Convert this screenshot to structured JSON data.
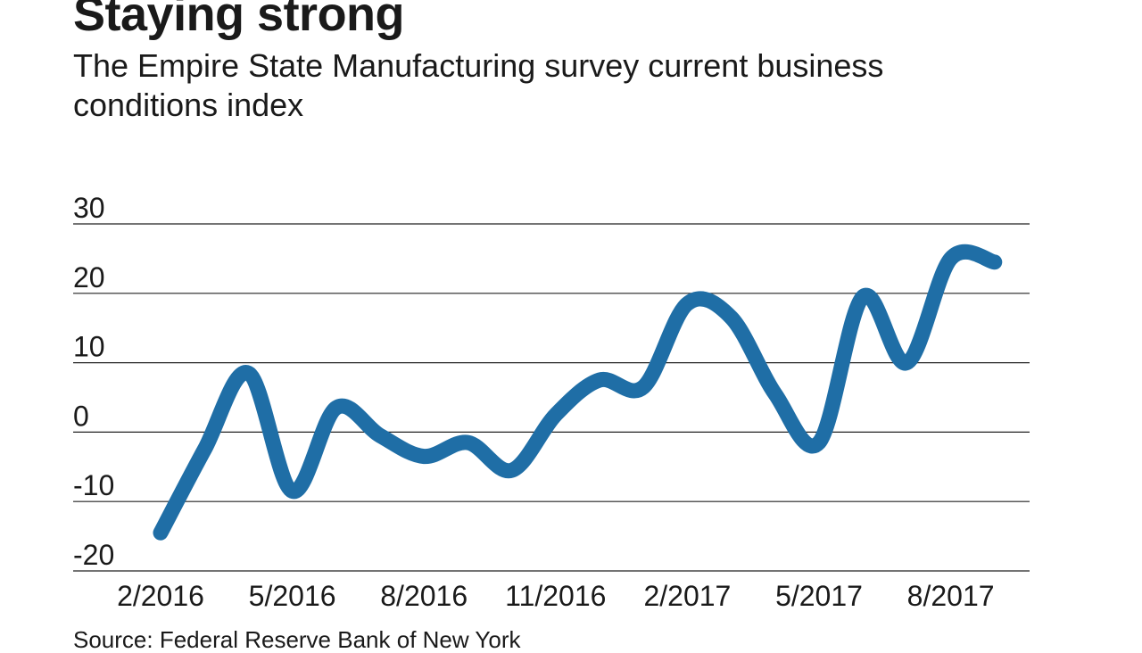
{
  "header": {
    "title": "Staying strong",
    "subtitle": "The Empire State Manufacturing survey current business conditions index"
  },
  "footer": {
    "source": "Source: Federal Reserve Bank of New York"
  },
  "colors": {
    "line": "#1f6ea6",
    "grid": "#222222",
    "text": "#1a1a1a"
  },
  "chart_data": {
    "type": "line",
    "title": "Staying strong",
    "subtitle": "The Empire State Manufacturing survey current business conditions index",
    "xlabel": "",
    "ylabel": "",
    "ylim": [
      -20,
      30
    ],
    "yticks": [
      30,
      20,
      10,
      0,
      -10,
      -20
    ],
    "ytick_labels": [
      "30",
      "20",
      "10",
      "0",
      "-10",
      "-20"
    ],
    "xtick_labels": [
      "2/2016",
      "5/2016",
      "8/2016",
      "11/2016",
      "2/2017",
      "5/2017",
      "8/2017"
    ],
    "xtick_index": [
      0,
      3,
      6,
      9,
      12,
      15,
      18
    ],
    "grid": true,
    "legend": "none",
    "series": [
      {
        "name": "Current business conditions index",
        "x": [
          "2/2016",
          "3/2016",
          "4/2016",
          "5/2016",
          "6/2016",
          "7/2016",
          "8/2016",
          "9/2016",
          "10/2016",
          "11/2016",
          "12/2016",
          "1/2017",
          "2/2017",
          "3/2017",
          "4/2017",
          "5/2017",
          "6/2017",
          "7/2017",
          "8/2017",
          "9/2017"
        ],
        "values": [
          -14.5,
          -2.5,
          8.5,
          -8.5,
          3.5,
          -0.5,
          -3.5,
          -1.5,
          -5.5,
          2.5,
          7.5,
          6.5,
          18.5,
          16.5,
          5.5,
          -1.5,
          19.5,
          10.0,
          25.0,
          24.5
        ]
      }
    ]
  }
}
